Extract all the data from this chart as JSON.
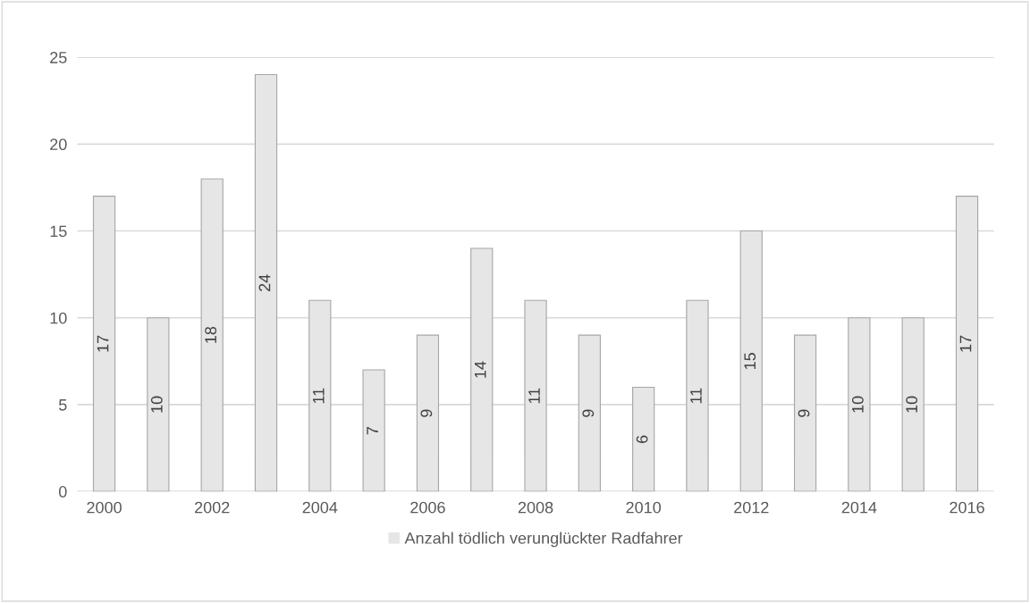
{
  "chart_data": {
    "type": "bar",
    "categories": [
      "2000",
      null,
      "2002",
      null,
      "2004",
      null,
      "2006",
      null,
      "2008",
      null,
      "2010",
      null,
      "2012",
      null,
      "2014",
      null,
      "2016"
    ],
    "series": [
      {
        "name": "Anzahl tödlich verunglückter Radfahrer",
        "color": "#e7e6e6",
        "values": [
          17,
          10,
          18,
          24,
          11,
          7,
          9,
          14,
          11,
          9,
          6,
          11,
          15,
          9,
          10,
          10,
          17
        ]
      }
    ],
    "ylim": [
      0,
      25
    ],
    "yticks": [
      0,
      5,
      10,
      15,
      20,
      25
    ],
    "grid": "y",
    "legend": "bottom",
    "data_labels": true
  }
}
